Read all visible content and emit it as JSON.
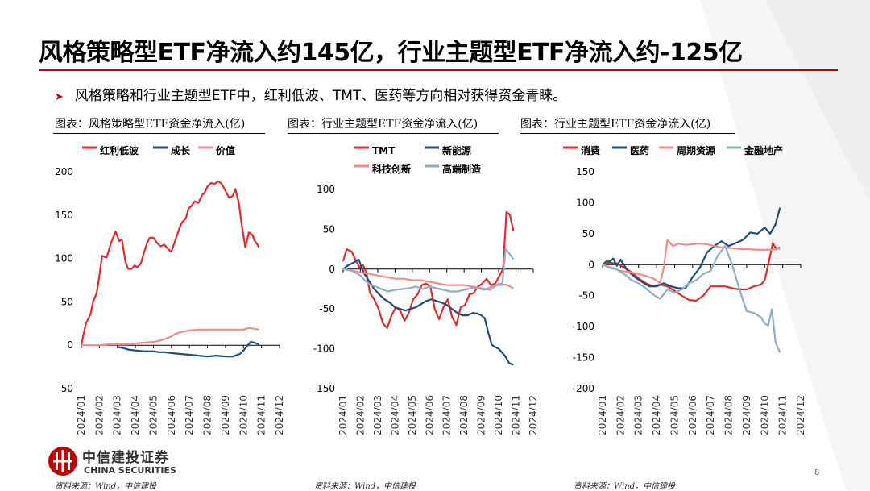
{
  "title": "风格策略型ETF净流入约145亿，行业主题型ETF净流入约-125亿",
  "bullet": "风格策略和行业主题型ETF中，红利低波、TMT、医药等方向相对获得资金青睐。",
  "captions": [
    "图表：风格策略型ETF资金净流入(亿)",
    "图表：行业主题型ETF资金净流入(亿)",
    "图表：行业主题型ETF资金净流入(亿)"
  ],
  "sources": [
    "资料来源：Wind，中信建投",
    "资料来源：Wind，中信建投",
    "资料来源：Wind，中信建投"
  ],
  "logo": {
    "cn": "中信建投证券",
    "en": "CHINA SECURITIES"
  },
  "page_number": "8",
  "colors": {
    "accent": "#c00000",
    "red": "#e32b2b",
    "navy": "#1f4e79",
    "pink": "#f08c8c",
    "grey_blue": "#8fafc4"
  },
  "chart_data": [
    {
      "type": "line",
      "ylim": [
        -50,
        200
      ],
      "yticks": [
        -50,
        0,
        50,
        100,
        150,
        200
      ],
      "x_labels": [
        "2024/01",
        "2024/02",
        "2024/03",
        "2024/04",
        "2024/05",
        "2024/06",
        "2024/07",
        "2024/08",
        "2024/09",
        "2024/10",
        "2024/11",
        "2024/12"
      ],
      "legend": "top",
      "series": [
        {
          "name": "红利低波",
          "color": "#e32b2b",
          "x": [
            0,
            0.1,
            0.25,
            0.5,
            0.65,
            0.85,
            1.0,
            1.15,
            1.4,
            1.65,
            1.9,
            2.1,
            2.25,
            2.45,
            2.6,
            2.8,
            2.95,
            3.1,
            3.3,
            3.45,
            3.65,
            3.8,
            4.0,
            4.2,
            4.4,
            4.6,
            4.85,
            5.0,
            5.2,
            5.45,
            5.6,
            5.8,
            5.95,
            6.1,
            6.3,
            6.5,
            6.7,
            6.85,
            7.0,
            7.2,
            7.4,
            7.6,
            7.8,
            8.0,
            8.2,
            8.4,
            8.55,
            8.75,
            8.9,
            9.1,
            9.3,
            9.5,
            9.6,
            9.75,
            9.85
          ],
          "y": [
            0,
            10,
            25,
            35,
            50,
            60,
            80,
            103,
            101,
            118,
            131,
            120,
            122,
            96,
            88,
            88,
            92,
            90,
            94,
            105,
            118,
            124,
            124,
            118,
            114,
            116,
            110,
            108,
            120,
            135,
            142,
            146,
            158,
            160,
            166,
            164,
            173,
            176,
            183,
            187,
            186,
            189,
            186,
            178,
            170,
            172,
            180,
            163,
            139,
            113,
            130,
            127,
            121,
            117,
            113
          ]
        },
        {
          "name": "成长",
          "color": "#1f4e79",
          "x": [
            2.0,
            2.3,
            2.6,
            3.0,
            3.5,
            4.0,
            4.3,
            4.6,
            5.0,
            5.5,
            6.0,
            6.5,
            7.0,
            7.5,
            8.0,
            8.4,
            8.8,
            9.0,
            9.2,
            9.4,
            9.6,
            9.85
          ],
          "y": [
            -2,
            -3,
            -5,
            -6,
            -7,
            -7,
            -8,
            -8,
            -9,
            -10,
            -11,
            -12,
            -13,
            -12,
            -13,
            -13,
            -10,
            -6,
            -1,
            4,
            3,
            1
          ]
        },
        {
          "name": "价值",
          "color": "#f08c8c",
          "x": [
            0,
            0.5,
            1.0,
            1.5,
            2.0,
            2.5,
            3.0,
            3.5,
            4.0,
            4.3,
            4.6,
            5.0,
            5.2,
            5.5,
            6.0,
            6.5,
            7.0,
            7.5,
            8.0,
            8.5,
            9.0,
            9.3,
            9.6,
            9.85
          ],
          "y": [
            0,
            0,
            0,
            1,
            1,
            1,
            2,
            3,
            4,
            5,
            7,
            10,
            13,
            15,
            17,
            18,
            18,
            18,
            18,
            18,
            18,
            20,
            19,
            18
          ]
        }
      ]
    },
    {
      "type": "line",
      "ylim": [
        -150,
        100
      ],
      "yticks": [
        -150,
        -100,
        -50,
        0,
        50,
        100
      ],
      "x_labels": [
        "2024/01",
        "2024/02",
        "2024/03",
        "2024/04",
        "2024/05",
        "2024/06",
        "2024/07",
        "2024/08",
        "2024/09",
        "2024/10",
        "2024/11",
        "2024/12"
      ],
      "legend": "top",
      "series": [
        {
          "name": "TMT",
          "color": "#e32b2b",
          "x": [
            0,
            0.2,
            0.5,
            0.75,
            0.95,
            1.15,
            1.35,
            1.55,
            1.8,
            2.05,
            2.3,
            2.55,
            2.8,
            3.05,
            3.3,
            3.55,
            3.8,
            4.05,
            4.3,
            4.55,
            4.8,
            5.05,
            5.3,
            5.55,
            5.8,
            6.05,
            6.3,
            6.55,
            6.8,
            7.05,
            7.3,
            7.55,
            7.8,
            8.05,
            8.3,
            8.55,
            8.8,
            9.05,
            9.25,
            9.45,
            9.65,
            9.85
          ],
          "y": [
            10,
            25,
            22,
            10,
            2,
            5,
            -5,
            -30,
            -38,
            -50,
            -68,
            -74,
            -58,
            -48,
            -52,
            -65,
            -55,
            -38,
            -32,
            -20,
            -18,
            -22,
            -50,
            -63,
            -48,
            -38,
            -60,
            -70,
            -48,
            -45,
            -32,
            -30,
            -22,
            -18,
            -12,
            -20,
            -18,
            -8,
            0,
            72,
            68,
            48
          ]
        },
        {
          "name": "新能源",
          "color": "#1f4e79",
          "x": [
            0,
            0.3,
            0.6,
            0.9,
            1.2,
            1.5,
            1.8,
            2.1,
            2.4,
            2.7,
            3.0,
            3.3,
            3.6,
            3.9,
            4.2,
            4.5,
            4.8,
            5.1,
            5.4,
            5.7,
            6.0,
            6.3,
            6.6,
            6.9,
            7.2,
            7.5,
            7.8,
            8.0,
            8.2,
            8.4,
            8.6,
            8.8,
            9.0,
            9.2,
            9.4,
            9.6,
            9.85
          ],
          "y": [
            0,
            5,
            8,
            12,
            -5,
            -15,
            -25,
            -32,
            -38,
            -42,
            -48,
            -50,
            -52,
            -50,
            -48,
            -44,
            -40,
            -38,
            -40,
            -42,
            -45,
            -50,
            -55,
            -58,
            -58,
            -55,
            -56,
            -58,
            -62,
            -80,
            -95,
            -98,
            -100,
            -105,
            -110,
            -118,
            -120
          ]
        },
        {
          "name": "科技创新",
          "color": "#f08c8c",
          "x": [
            0,
            0.5,
            1.0,
            1.5,
            2.0,
            2.5,
            3.0,
            3.5,
            4.0,
            4.5,
            5.0,
            5.5,
            6.0,
            6.5,
            7.0,
            7.5,
            8.0,
            8.5,
            9.0,
            9.5,
            9.85
          ],
          "y": [
            0,
            -2,
            -4,
            -6,
            -8,
            -10,
            -12,
            -12,
            -14,
            -14,
            -16,
            -18,
            -20,
            -20,
            -20,
            -22,
            -24,
            -26,
            -18,
            -20,
            -24
          ]
        },
        {
          "name": "高端制造",
          "color": "#8fafc4",
          "x": [
            0,
            0.5,
            1.0,
            1.3,
            1.6,
            1.9,
            2.2,
            2.6,
            3.0,
            3.4,
            3.8,
            4.2,
            4.6,
            5.0,
            5.4,
            5.8,
            6.2,
            6.6,
            7.0,
            7.4,
            7.8,
            8.2,
            8.6,
            9.0,
            9.2,
            9.4,
            9.6,
            9.85
          ],
          "y": [
            0,
            -2,
            -8,
            -15,
            -20,
            -22,
            -25,
            -28,
            -26,
            -25,
            -24,
            -22,
            -25,
            -22,
            -24,
            -26,
            -28,
            -28,
            -26,
            -24,
            -24,
            -26,
            -22,
            -20,
            -20,
            25,
            20,
            12
          ]
        }
      ]
    },
    {
      "type": "line",
      "ylim": [
        -200,
        150
      ],
      "yticks": [
        -200,
        -150,
        -100,
        -50,
        0,
        50,
        100,
        150
      ],
      "x_labels": [
        "2024/01",
        "2024/02",
        "2024/03",
        "2024/04",
        "2024/05",
        "2024/06",
        "2024/07",
        "2024/08",
        "2024/09",
        "2024/10",
        "2024/11",
        "2024/12"
      ],
      "legend": "top",
      "series": [
        {
          "name": "消费",
          "color": "#e32b2b",
          "x": [
            0,
            0.4,
            0.8,
            1.2,
            1.6,
            2.0,
            2.4,
            2.8,
            3.2,
            3.6,
            4.0,
            4.4,
            4.8,
            5.2,
            5.6,
            6.0,
            6.4,
            6.8,
            7.2,
            7.6,
            8.0,
            8.4,
            8.8,
            9.0,
            9.2,
            9.45,
            9.65,
            9.85
          ],
          "y": [
            0,
            3,
            2,
            -5,
            -12,
            -22,
            -30,
            -35,
            -32,
            -35,
            -42,
            -50,
            -57,
            -58,
            -50,
            -35,
            -35,
            -35,
            -38,
            -40,
            -40,
            -35,
            -32,
            -25,
            0,
            35,
            25,
            28
          ]
        },
        {
          "name": "医药",
          "color": "#1f4e79",
          "x": [
            0,
            0.2,
            0.4,
            0.6,
            0.8,
            1.0,
            1.4,
            1.8,
            2.2,
            2.6,
            3.0,
            3.4,
            3.8,
            4.2,
            4.6,
            5.0,
            5.4,
            5.8,
            6.2,
            6.6,
            7.0,
            7.4,
            7.8,
            8.2,
            8.6,
            9.0,
            9.3,
            9.6,
            9.85
          ],
          "y": [
            0,
            5,
            5,
            10,
            -2,
            8,
            -10,
            -20,
            -28,
            -35,
            -35,
            -30,
            -35,
            -38,
            -38,
            -20,
            -5,
            20,
            30,
            38,
            30,
            35,
            40,
            52,
            50,
            60,
            50,
            65,
            92
          ]
        },
        {
          "name": "周期资源",
          "color": "#f08c8c",
          "x": [
            0,
            0.5,
            1.0,
            1.5,
            2.0,
            2.4,
            2.8,
            3.2,
            3.4,
            3.6,
            3.9,
            4.2,
            4.6,
            5.0,
            5.4,
            5.8,
            6.2,
            6.6,
            7.0,
            7.4,
            7.8,
            8.2,
            8.6,
            9.0,
            9.4,
            9.85
          ],
          "y": [
            0,
            -5,
            -10,
            -12,
            -15,
            -18,
            -22,
            -30,
            -5,
            40,
            30,
            34,
            32,
            33,
            34,
            33,
            30,
            28,
            27,
            26,
            25,
            25,
            24,
            24,
            24,
            26
          ]
        },
        {
          "name": "金融地产",
          "color": "#8fafc4",
          "x": [
            0,
            0.4,
            0.8,
            1.2,
            1.6,
            2.0,
            2.4,
            2.8,
            3.2,
            3.6,
            4.0,
            4.4,
            4.8,
            5.2,
            5.6,
            6.0,
            6.4,
            6.8,
            7.2,
            7.6,
            8.0,
            8.4,
            8.8,
            9.0,
            9.2,
            9.4,
            9.6,
            9.85
          ],
          "y": [
            0,
            -5,
            -8,
            -15,
            -25,
            -30,
            -38,
            -48,
            -55,
            -40,
            -45,
            -40,
            -30,
            -25,
            -15,
            -10,
            15,
            30,
            0,
            -40,
            -75,
            -78,
            -85,
            -95,
            -98,
            -72,
            -125,
            -142
          ]
        }
      ]
    }
  ]
}
